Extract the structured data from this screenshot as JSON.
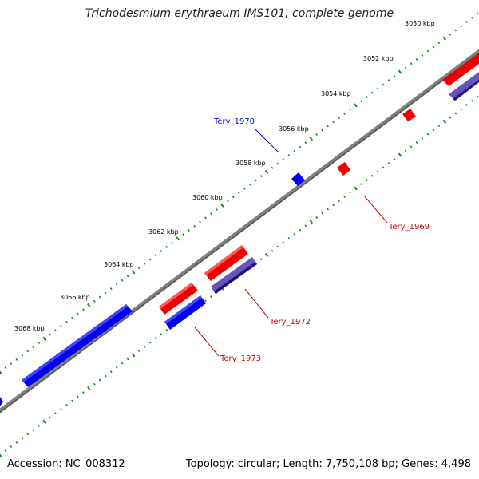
{
  "title": "Trichodesmium erythraeum IMS101, complete genome",
  "accession": "Accession: NC_008312",
  "summary": "Topology: circular; Length: 7,750,108 bp; Genes: 4,498",
  "colors": {
    "backbone": "#808080",
    "tick": "#1a8a1a",
    "forward_gene": "#ee0000",
    "reverse_gene": "#0000ee",
    "forward_highlight": "#6655bb",
    "label_blue": "#0000cc",
    "label_red": "#cc0000"
  },
  "scale_labels": [
    {
      "name": "tick-label-3050",
      "text": "3050 kbp"
    },
    {
      "name": "tick-label-3052",
      "text": "3052 kbp"
    },
    {
      "name": "tick-label-3054",
      "text": "3054 kbp"
    },
    {
      "name": "tick-label-3056",
      "text": "3056 kbp"
    },
    {
      "name": "tick-label-3058",
      "text": "3058 kbp"
    },
    {
      "name": "tick-label-3060",
      "text": "3060 kbp"
    },
    {
      "name": "tick-label-3062",
      "text": "3062 kbp"
    },
    {
      "name": "tick-label-3064",
      "text": "3064 kbp"
    },
    {
      "name": "tick-label-3066",
      "text": "3066 kbp"
    },
    {
      "name": "tick-label-3068",
      "text": "3068 kbp"
    }
  ],
  "gene_labels": [
    {
      "name": "gene-label-tery-1970",
      "text": "Tery_1970",
      "color": "label_blue"
    },
    {
      "name": "gene-label-tery-1969",
      "text": "Tery_1969",
      "color": "label_red"
    },
    {
      "name": "gene-label-tery-1972",
      "text": "Tery_1972",
      "color": "label_red"
    },
    {
      "name": "gene-label-tery-1973",
      "text": "Tery_1973",
      "color": "label_red"
    }
  ]
}
